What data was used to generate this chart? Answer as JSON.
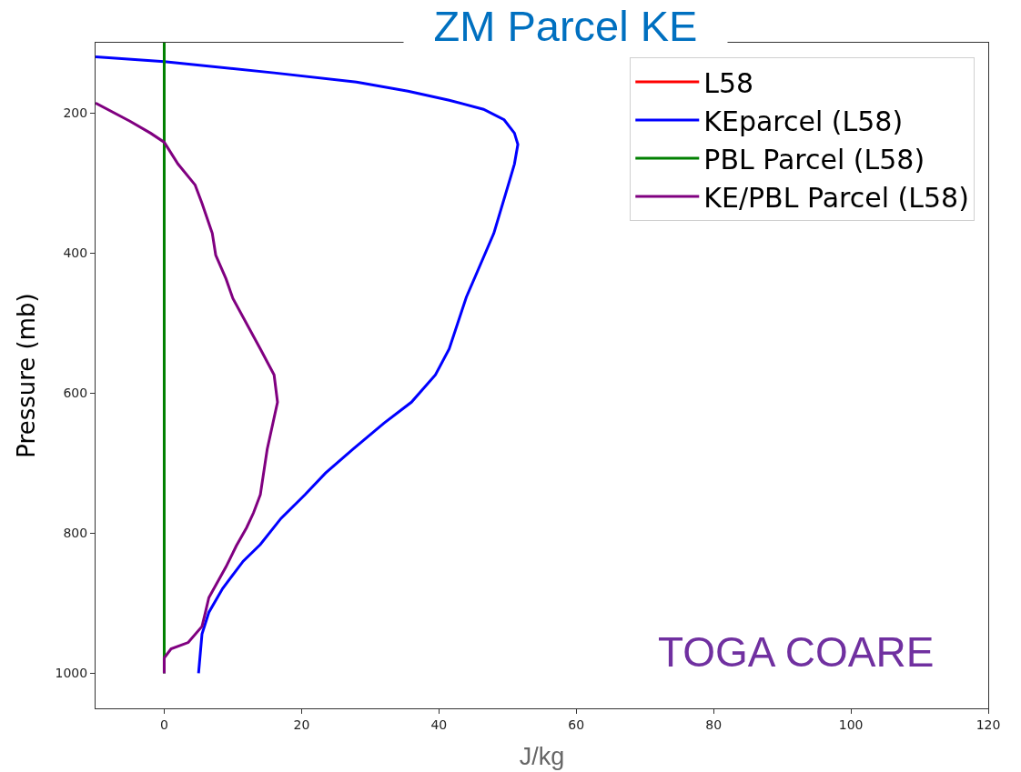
{
  "chart_data": {
    "type": "line",
    "title": "ZM Parcel KE",
    "xlabel": "J/kg",
    "ylabel": "Pressure (mb)",
    "annotations": [
      "TOGA COARE"
    ],
    "xlim": [
      -10,
      120
    ],
    "xticks": [
      0,
      20,
      40,
      60,
      80,
      100,
      120
    ],
    "ylim": [
      1050,
      100
    ],
    "yticks": [
      200,
      400,
      600,
      800,
      1000
    ],
    "grid": false,
    "legend": "top right",
    "marker": "none",
    "line_style": "solid",
    "series": [
      {
        "name": "L58",
        "color": "#ff0000",
        "values": [
          null,
          null
        ]
      },
      {
        "name": "KEparcel (L58)",
        "color": "#0000ff",
        "x": [
          -10,
          0,
          16,
          28,
          35.5,
          41.5,
          46.5,
          49.5,
          51,
          51.5,
          51,
          50.5,
          48,
          45.5,
          44,
          41.5,
          39.5,
          36,
          32,
          27.5,
          23.5,
          20.5,
          17,
          14,
          11.5,
          8.5,
          6.5,
          5.5,
          5
        ],
        "values": [
          120,
          127,
          143,
          156,
          169,
          182,
          195,
          210,
          229,
          245,
          273,
          290,
          372,
          429,
          463,
          537,
          574,
          613,
          643,
          680,
          714,
          745,
          779,
          816,
          840,
          879,
          913,
          944,
          1000
        ]
      },
      {
        "name": "PBL Parcel (L58)",
        "color": "#008000",
        "x": [
          0,
          0
        ],
        "values": [
          100,
          1000
        ]
      },
      {
        "name": "KE/PBL Parcel (L58)",
        "color": "#800080",
        "x": [
          -10,
          -5,
          -2,
          0,
          2,
          4.5,
          5.5,
          7,
          7.5,
          9,
          10,
          14,
          16,
          16.5,
          15,
          14,
          13,
          12,
          10.5,
          9,
          6.5,
          6,
          5.5,
          3.5,
          1,
          0,
          0
        ],
        "values": [
          186,
          212,
          229,
          242,
          273,
          303,
          329,
          372,
          403,
          437,
          465,
          537,
          574,
          613,
          680,
          745,
          771,
          792,
          818,
          848,
          892,
          913,
          933,
          956,
          965,
          978,
          1000
        ]
      }
    ]
  }
}
